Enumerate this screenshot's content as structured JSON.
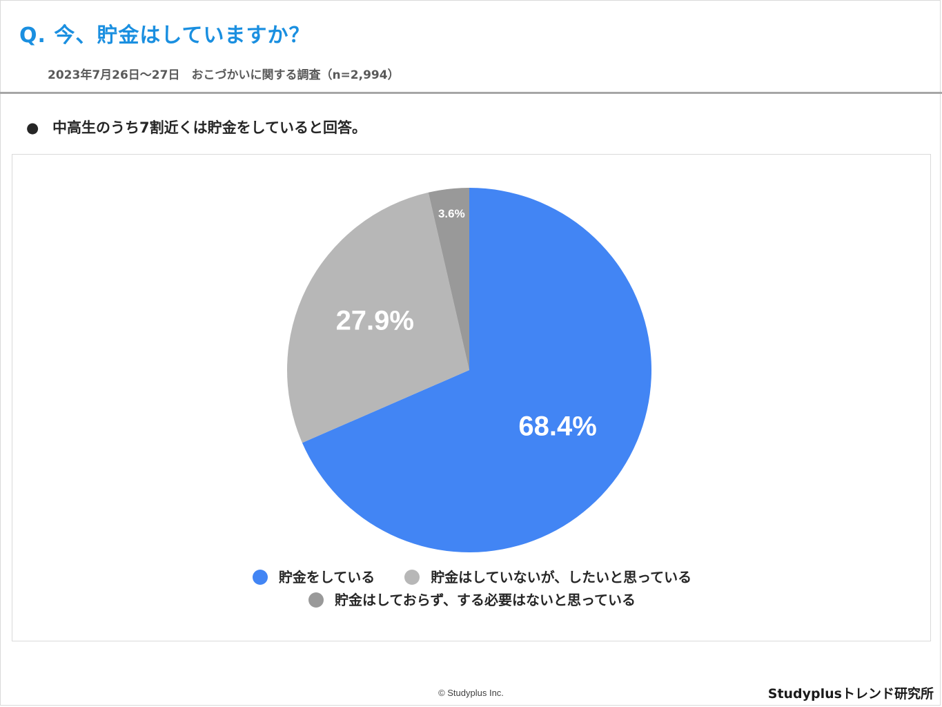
{
  "header": {
    "question": "Q. 今、貯金はしていますか？",
    "survey_info": "2023年7月26日〜27日　おこづかいに関する調査（n=2,994）"
  },
  "finding": {
    "bullet": "●",
    "text": "中高生のうち7割近くは貯金をしていると回答。"
  },
  "chart_data": {
    "type": "pie",
    "slices": [
      {
        "label": "貯金をしている",
        "value": 68.4,
        "display": "68.4%",
        "color": "#4285f4",
        "label_color": "#ffffff"
      },
      {
        "label": "貯金はしていないが、したいと思っている",
        "value": 27.9,
        "display": "27.9%",
        "color": "#b7b7b7",
        "label_color": "#ffffff"
      },
      {
        "label": "貯金はしておらず、する必要はないと思っている",
        "value": 3.6,
        "display": "3.6%",
        "color": "#999999",
        "label_color": "#ffffff"
      }
    ],
    "start_angle": "12 o'clock",
    "direction": "clockwise",
    "legend_position": "bottom"
  },
  "footer": {
    "copyright": "© Studyplus Inc.",
    "brand": "Studyplusトレンド研究所"
  }
}
